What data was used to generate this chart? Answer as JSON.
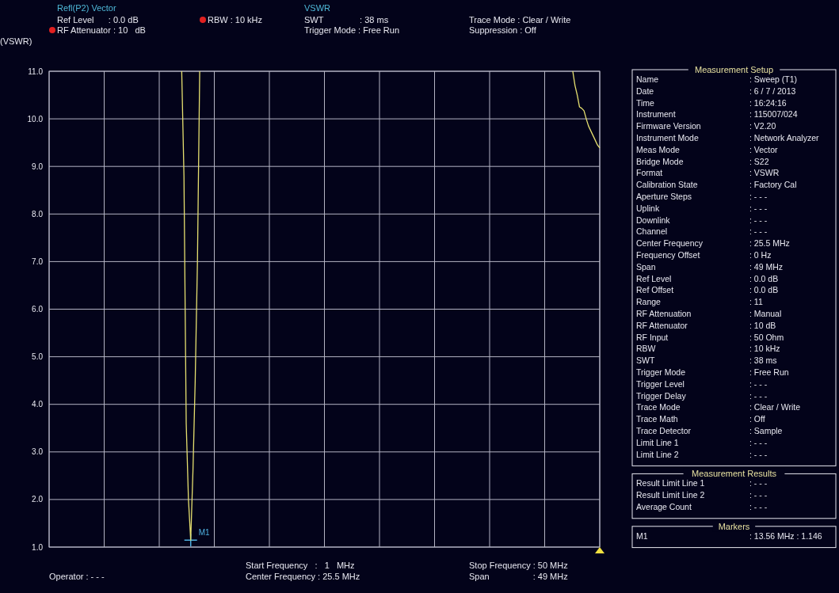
{
  "chart_data": [
    {
      "type": "line",
      "title": "Refl(P2) Vector",
      "subtitle": "VSWR",
      "ylabel": "(VSWR)",
      "categories": [
        null,
        null,
        null,
        null,
        null,
        null,
        null,
        null,
        null,
        null,
        null,
        null,
        null,
        null,
        null,
        null,
        null,
        null,
        null,
        null,
        null,
        null,
        null,
        null,
        null,
        null,
        null,
        null,
        null,
        null,
        null,
        null,
        null,
        null,
        null,
        null,
        null,
        null,
        null,
        null,
        null,
        null,
        null,
        null,
        null,
        null,
        null,
        null,
        null,
        null,
        null,
        null,
        null,
        null,
        null,
        null,
        null,
        null,
        null,
        null,
        null,
        null,
        null,
        null,
        null,
        null,
        null,
        null,
        null,
        null,
        null,
        null,
        null,
        null,
        null,
        null,
        null,
        null,
        null,
        null,
        null,
        null,
        null,
        null,
        null,
        null,
        null,
        null,
        null,
        null,
        null,
        null,
        null,
        null,
        null,
        null,
        null,
        null,
        null,
        null,
        null,
        null,
        null,
        null,
        null,
        null,
        null,
        null,
        null,
        null,
        null,
        null,
        null,
        null,
        null,
        null,
        null,
        null,
        null,
        null,
        null,
        null,
        null,
        null,
        null,
        null,
        null,
        null,
        null,
        null,
        null,
        null,
        null,
        null,
        null,
        null,
        null,
        null,
        null,
        null,
        null,
        null,
        null,
        null,
        null,
        null,
        null,
        null,
        null,
        null,
        null,
        null,
        null,
        null,
        null,
        null,
        null,
        null,
        null,
        null,
        null,
        null,
        null,
        null,
        null,
        null,
        null,
        null,
        null,
        null,
        null,
        null,
        null,
        null,
        null,
        null,
        null,
        null,
        null,
        null,
        null,
        null,
        null,
        null,
        null,
        null,
        null,
        null,
        null,
        null,
        null,
        null,
        null,
        null,
        null,
        null,
        null,
        null,
        null,
        null,
        null,
        null,
        null,
        null,
        null,
        null,
        null,
        null,
        null,
        null,
        null,
        null,
        null,
        null,
        null,
        null,
        null,
        null,
        null,
        null,
        null,
        null,
        null,
        null,
        null,
        null,
        null,
        null,
        null,
        null,
        null,
        null,
        null,
        null,
        null,
        null,
        null,
        null,
        null,
        null,
        null,
        null,
        null,
        null,
        null,
        null
      ],
      "series": [
        {
          "color": "#e6e070",
          "values": [
            null,
            null,
            null,
            null,
            null,
            null,
            null,
            null,
            null,
            null,
            null,
            null,
            null,
            null,
            null,
            null,
            null,
            null,
            null,
            null,
            null,
            null,
            null,
            null,
            null,
            null,
            null,
            null,
            null,
            null,
            null,
            null,
            null,
            null,
            null,
            null,
            null,
            null,
            null,
            null,
            null,
            null,
            null,
            null,
            null,
            null,
            null,
            null,
            null,
            null,
            null,
            null,
            null,
            null,
            null,
            null,
            null,
            null,
            null,
            11,
            8.8,
            3.6,
            2.0,
            1.146,
            2.6,
            4.5,
            7.0,
            11,
            null,
            null,
            null,
            null,
            null,
            null,
            null,
            null,
            null,
            null,
            null,
            null,
            null,
            null,
            null,
            null,
            null,
            null,
            null,
            null,
            null,
            null,
            null,
            null,
            null,
            null,
            null,
            null,
            null,
            null,
            null,
            null,
            null,
            null,
            null,
            null,
            null,
            null,
            null,
            null,
            null,
            null,
            null,
            null,
            null,
            null,
            null,
            null,
            null,
            null,
            null,
            null,
            null,
            null,
            null,
            null,
            null,
            null,
            null,
            null,
            null,
            null,
            null,
            null,
            null,
            null,
            null,
            null,
            null,
            null,
            null,
            null,
            null,
            null,
            null,
            null,
            null,
            null,
            null,
            null,
            null,
            null,
            null,
            null,
            null,
            null,
            null,
            null,
            null,
            null,
            null,
            null,
            null,
            null,
            null,
            null,
            null,
            null,
            null,
            null,
            null,
            null,
            null,
            null,
            null,
            null,
            null,
            null,
            null,
            null,
            null,
            null,
            null,
            null,
            null,
            null,
            null,
            null,
            null,
            null,
            null,
            null,
            null,
            null,
            null,
            null,
            null,
            null,
            null,
            null,
            null,
            null,
            null,
            null,
            null,
            null,
            null,
            null,
            null,
            null,
            null,
            null,
            null,
            null,
            null,
            null,
            null,
            null,
            null,
            null,
            null,
            null,
            null,
            null,
            null,
            null,
            null,
            null,
            null,
            null,
            null,
            null,
            null,
            null,
            null,
            11,
            10.7,
            10.5,
            10.25,
            10.22,
            10.17,
            10.0,
            9.85,
            9.75,
            9.65,
            9.55,
            9.45,
            9.39
          ]
        },
        {
          "type": "scatter",
          "name": "M1",
          "color": "#4fb0e0",
          "marker": "cross",
          "values": [
            null,
            null,
            null,
            null,
            null,
            null,
            null,
            null,
            null,
            null,
            null,
            null,
            null,
            null,
            null,
            null,
            null,
            null,
            null,
            null,
            null,
            null,
            null,
            null,
            null,
            null,
            null,
            null,
            null,
            null,
            null,
            null,
            null,
            null,
            null,
            null,
            null,
            null,
            null,
            null,
            null,
            null,
            null,
            null,
            null,
            null,
            null,
            null,
            null,
            null,
            null,
            null,
            null,
            null,
            null,
            null,
            null,
            null,
            null,
            null,
            null,
            null,
            null,
            1.146,
            null,
            null,
            null,
            null,
            null,
            null,
            null,
            null,
            null,
            null,
            null,
            null,
            null,
            null,
            null,
            null,
            null,
            null,
            null,
            null,
            null,
            null,
            null,
            null,
            null,
            null,
            null,
            null,
            null,
            null,
            null,
            null,
            null,
            null,
            null,
            null,
            null,
            null,
            null,
            null,
            null,
            null,
            null,
            null,
            null,
            null,
            null,
            null,
            null,
            null,
            null,
            null,
            null,
            null,
            null,
            null,
            null,
            null,
            null,
            null,
            null,
            null,
            null,
            null,
            null,
            null,
            null,
            null,
            null,
            null,
            null,
            null,
            null,
            null,
            null,
            null,
            null,
            null,
            null,
            null,
            null,
            null,
            null,
            null,
            null,
            null,
            null,
            null,
            null,
            null,
            null,
            null,
            null,
            null,
            null,
            null,
            null,
            null,
            null,
            null,
            null,
            null,
            null,
            null,
            null,
            null,
            null,
            null,
            null,
            null,
            null,
            null,
            null,
            null,
            null,
            null,
            null,
            null,
            null,
            null,
            null,
            null,
            null,
            null,
            null,
            null,
            null,
            null,
            null,
            null,
            null,
            null,
            null,
            null,
            null,
            null,
            null,
            null,
            null,
            null,
            null,
            null,
            null,
            null,
            null,
            null,
            null,
            null,
            null,
            null,
            null,
            null,
            null,
            null,
            null,
            null,
            null,
            null,
            null,
            null,
            null,
            null,
            null,
            null,
            null,
            null,
            null,
            null,
            null,
            null,
            null,
            null,
            null,
            null,
            null,
            null,
            null,
            null,
            null,
            null,
            null,
            null
          ]
        }
      ],
      "ylim": [
        1,
        11
      ],
      "yticks": [
        {
          "value": 1,
          "label": "1.0"
        },
        {
          "value": 2,
          "label": "2.0"
        },
        {
          "value": 3,
          "label": "3.0"
        },
        {
          "value": 4,
          "label": "4.0"
        },
        {
          "value": 5,
          "label": "5.0"
        },
        {
          "value": 6,
          "label": "6.0"
        },
        {
          "value": 7,
          "label": "7.0"
        },
        {
          "value": 8,
          "label": "8.0"
        },
        {
          "value": 9,
          "label": "9.0"
        },
        {
          "value": 10,
          "label": "10.0"
        },
        {
          "value": 11,
          "label": "11.0"
        }
      ],
      "grid": true,
      "marker": "none",
      "line_style": "solid",
      "annotations": [
        "Ref Level      : 0.0 dB",
        "RF Attenuator : 10   dB",
        "RBW : 10 kHz",
        "SWT               : 38 ms",
        "Trigger Mode : Free Run",
        "Trace Mode : Clear / Write",
        "Suppression : Off",
        "Start Frequency   :   1   MHz",
        "Center Frequency : 25.5 MHz",
        "Operator : - - -",
        "Stop Frequency : 50 MHz",
        "Span                  : 49 MHz"
      ]
    },
    {
      "type": "other",
      "title": "Measurement Setup",
      "annotations": [
        "Name : Sweep (T1)",
        "Date : 6 / 7 / 2013",
        "Time : 16:24:16",
        "Instrument : 115007/024",
        "Firmware Version : V2.20",
        "Instrument Mode : Network Analyzer",
        "Meas Mode : Vector",
        "Bridge Mode : S22",
        "Format : VSWR",
        "Calibration State : Factory Cal",
        "Aperture Steps : - - -",
        "Uplink : - - -",
        "Downlink : - - -",
        "Channel : - - -",
        "Center Frequency : 25.5 MHz",
        "Frequency Offset : 0 Hz",
        "Span : 49 MHz",
        "Ref Level : 0.0 dB",
        "Ref Offset : 0.0 dB",
        "Range : 11",
        "RF Attenuation : Manual",
        "RF Attenuator : 10 dB",
        "RF Input : 50 Ohm",
        "RBW : 10 kHz",
        "SWT : 38 ms",
        "Trigger Mode : Free Run",
        "Trigger Level : - - -",
        "Trigger Delay : - - -",
        "Trace Mode : Clear / Write",
        "Trace Math : Off",
        "Trace Detector : Sample",
        "Limit Line 1 : - - -",
        "Limit Line 2 : - - -"
      ]
    },
    {
      "type": "other",
      "title": "Measurement Results",
      "annotations": [
        "Result Limit Line 1 : - - -",
        "Result Limit Line 2 : - - -",
        "Average Count : - - -"
      ]
    },
    {
      "type": "other",
      "title": "Markers",
      "annotations": [
        "M1 : 13.56 MHz : 1.146"
      ]
    }
  ]
}
